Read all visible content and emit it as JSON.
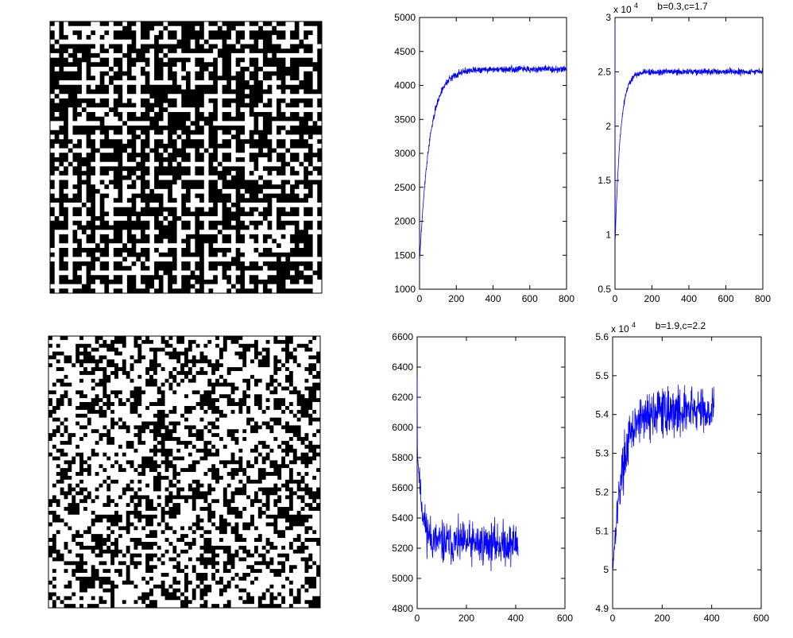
{
  "figure": {
    "grids": [
      {
        "description_rows": 60,
        "seed": 7,
        "density": 0.55,
        "style": "lattice"
      },
      {
        "description_rows": 70,
        "seed": 13,
        "density": 0.45,
        "style": "noise"
      }
    ]
  },
  "chart_data": [
    {
      "type": "line",
      "title": "",
      "xlim": [
        0,
        800
      ],
      "ylim": [
        1000,
        5000
      ],
      "xticks": [
        "0",
        "200",
        "400",
        "600",
        "800"
      ],
      "yticks": [
        "1000",
        "1500",
        "2000",
        "2500",
        "3000",
        "3500",
        "4000",
        "4500",
        "5000"
      ],
      "exponent_label": "",
      "series_color": "#0000ff",
      "model": {
        "start": 1400,
        "plateau": 4240,
        "rise": 0.018,
        "n": 800,
        "noise": 25,
        "seed": 3
      }
    },
    {
      "type": "line",
      "title": "b=0.3,c=1.7",
      "xlim": [
        0,
        800
      ],
      "ylim": [
        0.5,
        3
      ],
      "xticks": [
        "0",
        "200",
        "400",
        "600",
        "800"
      ],
      "yticks": [
        "0.5",
        "1",
        "1.5",
        "2",
        "2.5",
        "3"
      ],
      "exponent_label": "x 10",
      "exponent_power": "4",
      "series_color": "#0000ff",
      "model": {
        "start": 0.9,
        "plateau": 2.5,
        "rise": 0.035,
        "n": 800,
        "noise": 0.015,
        "seed": 5,
        "spike": 2.95
      }
    },
    {
      "type": "line",
      "title": "",
      "xlim": [
        0,
        600
      ],
      "ylim": [
        4800,
        6600
      ],
      "xticks": [
        "0",
        "200",
        "400",
        "600"
      ],
      "yticks": [
        "4800",
        "5000",
        "5200",
        "5400",
        "5600",
        "5800",
        "6000",
        "6200",
        "6400",
        "6600"
      ],
      "exponent_label": "",
      "series_color": "#0000ff",
      "model": {
        "start": 5900,
        "plateau": 5230,
        "rise": 0.05,
        "n": 410,
        "noise": 70,
        "seed": 11,
        "spike": 6330
      }
    },
    {
      "type": "line",
      "title": "b=1.9,c=2.2",
      "xlim": [
        0,
        600
      ],
      "ylim": [
        4.9,
        5.6
      ],
      "xticks": [
        "0",
        "200",
        "400",
        "600"
      ],
      "yticks": [
        "4.9",
        "5",
        "5.1",
        "5.2",
        "5.3",
        "5.4",
        "5.5",
        "5.6"
      ],
      "exponent_label": "x 10",
      "exponent_power": "4",
      "series_color": "#0000ff",
      "model": {
        "start": 5.0,
        "plateau": 5.41,
        "rise": 0.025,
        "n": 410,
        "noise": 0.03,
        "seed": 17
      }
    }
  ]
}
